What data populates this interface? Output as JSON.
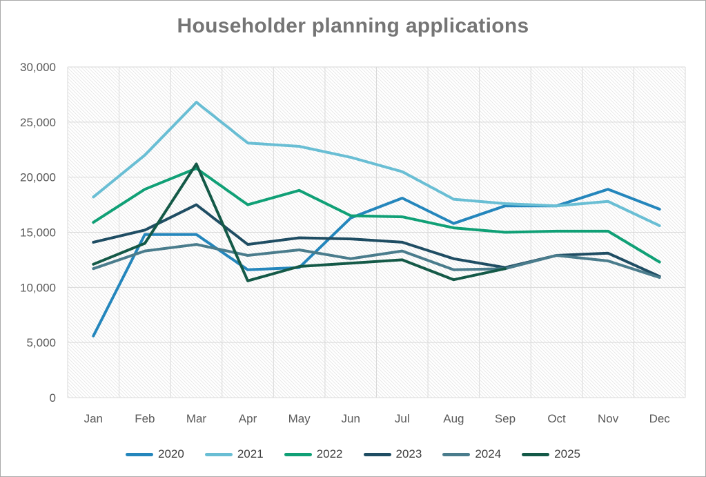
{
  "title": "Householder planning applications",
  "chart_data": {
    "type": "line",
    "title": "Householder planning applications",
    "categories": [
      "Jan",
      "Feb",
      "Mar",
      "Apr",
      "May",
      "Jun",
      "Jul",
      "Aug",
      "Sep",
      "Oct",
      "Nov",
      "Dec"
    ],
    "series": [
      {
        "name": "2020",
        "color": "#2486BC",
        "values": [
          5600,
          14800,
          14800,
          11600,
          11800,
          16300,
          18100,
          15800,
          17400,
          17400,
          18900,
          17100
        ]
      },
      {
        "name": "2021",
        "color": "#69BED4",
        "values": [
          18200,
          22000,
          26800,
          23100,
          22800,
          21800,
          20500,
          18000,
          17600,
          17400,
          17800,
          15600
        ]
      },
      {
        "name": "2022",
        "color": "#10A076",
        "values": [
          15900,
          18900,
          20800,
          17500,
          18800,
          16500,
          16400,
          15400,
          15000,
          15100,
          15100,
          12300
        ]
      },
      {
        "name": "2023",
        "color": "#1F4D63",
        "values": [
          14100,
          15200,
          17500,
          13900,
          14500,
          14400,
          14100,
          12600,
          11800,
          12900,
          13100,
          11000
        ]
      },
      {
        "name": "2024",
        "color": "#4A7C8C",
        "values": [
          11700,
          13300,
          13900,
          12900,
          13400,
          12600,
          13300,
          11600,
          11700,
          12900,
          12400,
          10900
        ]
      },
      {
        "name": "2025",
        "color": "#145947",
        "values": [
          12100,
          14000,
          21200,
          10600,
          11900,
          12200,
          12500,
          10700,
          11700,
          null,
          null,
          null
        ]
      }
    ],
    "ylim": [
      0,
      30000
    ],
    "ytick_step": 5000,
    "ytick_labels": [
      "0",
      "5,000",
      "10,000",
      "15,000",
      "20,000",
      "25,000",
      "30,000"
    ],
    "grid": "horizontal and vertical gridlines",
    "gridline_color": "#d9d9d9",
    "plot_background": "light diagonal hatch",
    "hatch_color": "#e6e6e6",
    "axis_text_color": "#595959",
    "title_color": "#757575",
    "legend_position": "bottom"
  }
}
